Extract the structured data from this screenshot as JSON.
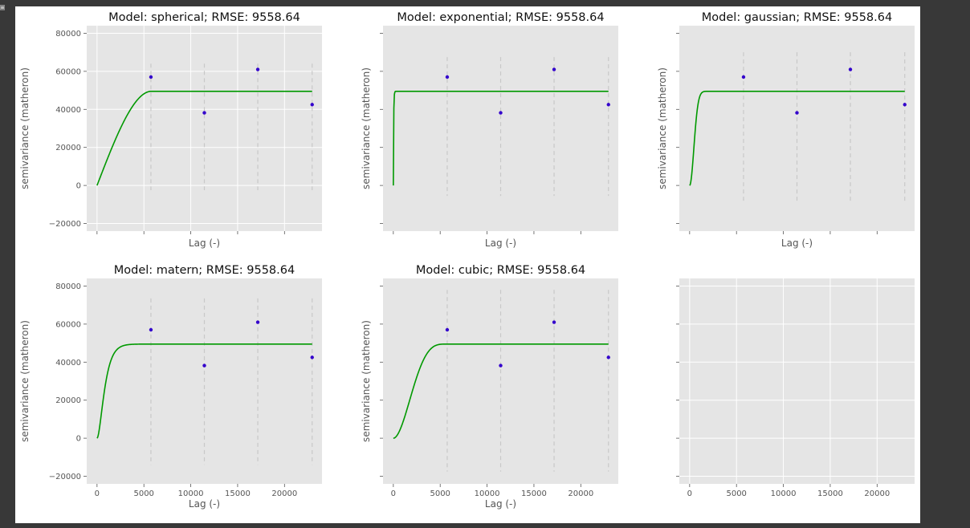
{
  "cell": {
    "output_icon": "output-toggle-icon"
  },
  "colors": {
    "panel_bg": "#e5e5e5",
    "grid": "#ffffff",
    "model_line": "#009900",
    "points": "#3300cc",
    "bin_lines": "#c8c8c8"
  },
  "chart_data": [
    {
      "type": "line",
      "title": "Model: spherical; RMSE: 9558.64",
      "xlabel": "Lag (-)",
      "ylabel": "semivariance (matheron)",
      "xlim": [
        -1100,
        24000
      ],
      "ylim": [
        -24000,
        84000
      ],
      "xticks": [
        0,
        5000,
        10000,
        15000,
        20000
      ],
      "xtick_labels": [],
      "yticks": [
        -20000,
        0,
        20000,
        40000,
        60000,
        80000
      ],
      "ytick_labels": [
        "−20000",
        "0",
        "20000",
        "40000",
        "60000",
        "80000"
      ],
      "grid": true,
      "model": {
        "kind": "spherical",
        "nugget": 0,
        "sill": 49500,
        "range": 5800
      },
      "points": {
        "x": [
          5750,
          11450,
          17150,
          22950
        ],
        "y": [
          57000,
          38200,
          61000,
          42500
        ]
      },
      "bin_edges": [
        5750,
        11450,
        17150,
        22950
      ],
      "bin_extent": [
        -2500,
        64000
      ]
    },
    {
      "type": "line",
      "title": "Model: exponential; RMSE: 9558.64",
      "xlabel": "Lag (-)",
      "ylabel": "semivariance (matheron)",
      "xlim": [
        -1100,
        24000
      ],
      "ylim": [
        -24000,
        84000
      ],
      "xticks": [
        0,
        5000,
        10000,
        15000,
        20000
      ],
      "xtick_labels": [],
      "yticks": [
        -20000,
        0,
        20000,
        40000,
        60000,
        80000
      ],
      "ytick_labels": [],
      "grid": false,
      "model": {
        "kind": "exponential",
        "nugget": 0,
        "sill": 49500,
        "range": 100
      },
      "points": {
        "x": [
          5750,
          11450,
          17150,
          22950
        ],
        "y": [
          57000,
          38200,
          61000,
          42500
        ]
      },
      "bin_edges": [
        5750,
        11450,
        17150,
        22950
      ],
      "bin_extent": [
        -5500,
        67500
      ]
    },
    {
      "type": "line",
      "title": "Model: gaussian; RMSE: 9558.64",
      "xlabel": "Lag (-)",
      "ylabel": "semivariance (matheron)",
      "xlim": [
        -1100,
        24000
      ],
      "ylim": [
        -24000,
        84000
      ],
      "xticks": [
        0,
        5000,
        10000,
        15000,
        20000
      ],
      "xtick_labels": [],
      "yticks": [
        -20000,
        0,
        20000,
        40000,
        60000,
        80000
      ],
      "ytick_labels": [],
      "grid": false,
      "model": {
        "kind": "gaussian",
        "nugget": 0,
        "sill": 49500,
        "range": 1100
      },
      "points": {
        "x": [
          5750,
          11450,
          17150,
          22950
        ],
        "y": [
          57000,
          38200,
          61000,
          42500
        ]
      },
      "bin_edges": [
        5750,
        11450,
        17150,
        22950
      ],
      "bin_extent": [
        -9500,
        70000
      ]
    },
    {
      "type": "line",
      "title": "Model: matern; RMSE: 9558.64",
      "xlabel": "Lag (-)",
      "ylabel": "semivariance (matheron)",
      "xlim": [
        -1100,
        24000
      ],
      "ylim": [
        -24000,
        84000
      ],
      "xticks": [
        0,
        5000,
        10000,
        15000,
        20000
      ],
      "xtick_labels": [
        "0",
        "5000",
        "10000",
        "15000",
        "20000"
      ],
      "yticks": [
        -20000,
        0,
        20000,
        40000,
        60000,
        80000
      ],
      "ytick_labels": [
        "−20000",
        "0",
        "20000",
        "40000",
        "60000",
        "80000"
      ],
      "grid": false,
      "model": {
        "kind": "matern",
        "nugget": 0,
        "sill": 49500,
        "range": 1400
      },
      "points": {
        "x": [
          5750,
          11450,
          17150,
          22950
        ],
        "y": [
          57000,
          38200,
          61000,
          42500
        ]
      },
      "bin_edges": [
        5750,
        11450,
        17150,
        22950
      ],
      "bin_extent": [
        -14000,
        73500
      ]
    },
    {
      "type": "line",
      "title": "Model: cubic; RMSE: 9558.64",
      "xlabel": "Lag (-)",
      "ylabel": "semivariance (matheron)",
      "xlim": [
        -1100,
        24000
      ],
      "ylim": [
        -24000,
        84000
      ],
      "xticks": [
        0,
        5000,
        10000,
        15000,
        20000
      ],
      "xtick_labels": [
        "0",
        "5000",
        "10000",
        "15000",
        "20000"
      ],
      "yticks": [
        -20000,
        0,
        20000,
        40000,
        60000,
        80000
      ],
      "ytick_labels": [],
      "grid": false,
      "model": {
        "kind": "cubic",
        "nugget": 0,
        "sill": 49500,
        "range": 5800
      },
      "points": {
        "x": [
          5750,
          11450,
          17150,
          22950
        ],
        "y": [
          57000,
          38200,
          61000,
          42500
        ]
      },
      "bin_edges": [
        5750,
        11450,
        17150,
        22950
      ],
      "bin_extent": [
        -17500,
        78000
      ]
    },
    {
      "type": "line",
      "title": "",
      "xlabel": "",
      "ylabel": "",
      "xlim": [
        -1100,
        24000
      ],
      "ylim": [
        -24000,
        84000
      ],
      "xticks": [
        0,
        5000,
        10000,
        15000,
        20000
      ],
      "xtick_labels": [
        "0",
        "5000",
        "10000",
        "15000",
        "20000"
      ],
      "yticks": [
        -20000,
        0,
        20000,
        40000,
        60000,
        80000
      ],
      "ytick_labels": [],
      "grid": true,
      "model": null,
      "points": null,
      "bin_edges": [],
      "bin_extent": null
    }
  ]
}
